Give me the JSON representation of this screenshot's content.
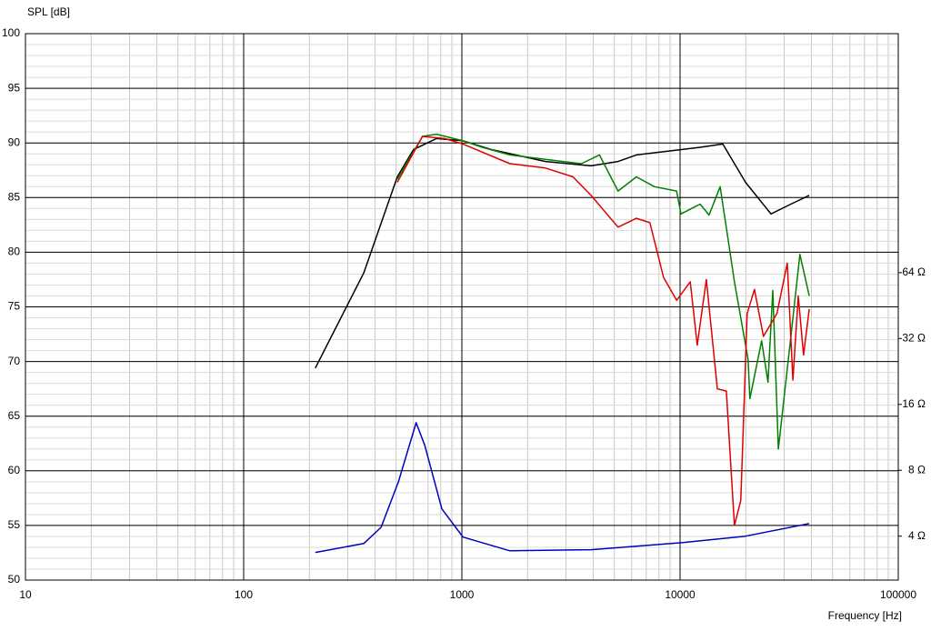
{
  "chart_data": {
    "type": "line",
    "ylabel": "SPL [dB]",
    "xlabel": "Frequency [Hz]",
    "xscale": "log",
    "y2scale": "log",
    "grid": true,
    "xlim": [
      10,
      100000
    ],
    "xticks": [
      10,
      100,
      1000,
      10000,
      100000
    ],
    "ylim": [
      50,
      100
    ],
    "yticks": [
      50,
      55,
      60,
      65,
      70,
      75,
      80,
      85,
      90,
      95,
      100
    ],
    "y2lim": [
      2.52,
      791
    ],
    "y2ticks": [
      {
        "value": 4,
        "label": "4 Ω"
      },
      {
        "value": 8,
        "label": "8 Ω"
      },
      {
        "value": 16,
        "label": "16 Ω"
      },
      {
        "value": 32,
        "label": "32 Ω"
      },
      {
        "value": 64,
        "label": "64 Ω"
      }
    ],
    "series": [
      {
        "color": "#000000",
        "x": [
          213,
          355,
          506,
          601,
          764,
          1012,
          1359,
          2415,
          3908,
          5200,
          6310,
          9260,
          12360,
          15700,
          19950,
          26100,
          32200,
          39060
        ],
        "values": [
          69.4,
          78.1,
          86.9,
          89.4,
          90.4,
          90.2,
          89.4,
          88.3,
          87.9,
          88.3,
          88.9,
          89.3,
          89.6,
          89.9,
          86.4,
          83.5,
          84.4,
          85.2
        ]
      },
      {
        "color": "#008000",
        "x": [
          506,
          660,
          764,
          1012,
          1240,
          1660,
          2415,
          3530,
          4270,
          5200,
          6310,
          7620,
          9640,
          10100,
          12360,
          13580,
          15270,
          17750,
          20500,
          20890,
          23650,
          25300,
          26600,
          28200,
          32200,
          35400,
          39100
        ],
        "values": [
          86.7,
          90.6,
          90.8,
          90.2,
          89.6,
          88.9,
          88.5,
          88.1,
          88.9,
          85.6,
          86.9,
          86.0,
          85.6,
          83.5,
          84.4,
          83.4,
          86.0,
          77.3,
          70.2,
          66.6,
          71.9,
          68.1,
          76.5,
          62.0,
          72.3,
          79.8,
          76.0
        ]
      },
      {
        "color": "#e00000",
        "x": [
          506,
          660,
          835,
          1012,
          1660,
          2415,
          3230,
          3910,
          5200,
          6310,
          7270,
          8400,
          9640,
          11130,
          11990,
          13200,
          14820,
          16300,
          17750,
          18980,
          20300,
          21910,
          24100,
          27800,
          31000,
          32900,
          34800,
          36800,
          39100
        ],
        "values": [
          86.4,
          90.6,
          90.4,
          89.9,
          88.1,
          87.7,
          86.9,
          85.2,
          82.3,
          83.1,
          82.7,
          77.7,
          75.6,
          77.3,
          71.5,
          77.5,
          67.5,
          67.3,
          55.0,
          57.3,
          74.4,
          76.6,
          72.3,
          74.4,
          79.0,
          68.3,
          76.0,
          70.6,
          74.8
        ]
      },
      {
        "color": "#0000c0",
        "axis": "y2",
        "x": [
          213,
          355,
          426,
          512,
          617,
          676,
          810,
          1012,
          1660,
          3910,
          10300,
          19950,
          39100
        ],
        "values": [
          3.37,
          3.7,
          4.39,
          7.08,
          13.2,
          10.4,
          5.33,
          3.96,
          3.43,
          3.47,
          3.74,
          4.0,
          4.57
        ]
      }
    ]
  }
}
